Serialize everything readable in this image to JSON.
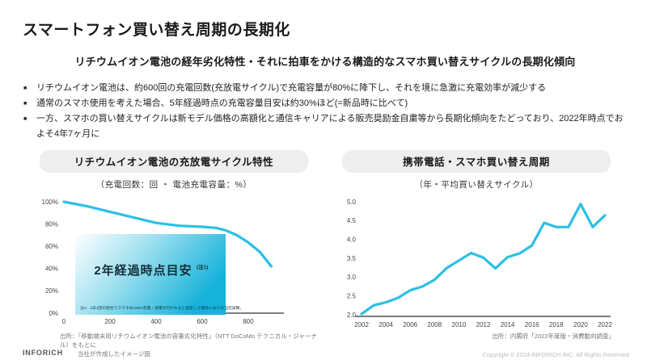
{
  "slide": {
    "title": "スマートフォン買い替え周期の長期化",
    "subtitle": "リチウムイオン電池の経年劣化特性・それに拍車をかける構造的なスマホ買い替えサイクルの長期化傾向",
    "bullets": [
      "リチウムイオン電池は、約600回の充電回数(充放電サイクル)で充電容量が80%に降下し、それを境に急激に充電効率が減少する",
      "通常のスマホ使用を考えた場合、5年経過時点の充電容量目安は約30%ほど(=新品時に比べて)",
      "一方、スマホの買い替えサイクルは新モデル価格の高額化と通信キャリアによる販売奨励金自粛等から長期化傾向をたどっており、2022年時点でおよそ4年7ヶ月に"
    ],
    "footer": {
      "logo": "INFORICH",
      "copyright": "Copyright © 2024 INFORICH INC. All Rights Reserved."
    }
  },
  "left_panel": {
    "pill_title": "リチウムイオン電池の充放電サイクル特性",
    "axis_caption": "（充電回数：回 ・ 電池充電容量：%）",
    "overlay": {
      "label": "2年経過時点目安",
      "superscript": "(注1)",
      "note": "注1：1日1回の割合でスマホの100%充電・放電が行われると仮定した場合における当社試算。"
    },
    "source_line1": "出所：「移動端末用リチウムイオン電池の容量劣化特性」（NTT DoCoMo テクニカル・ジャーナル）をもとに",
    "source_line2": "当社が作成したイメージ図"
  },
  "right_panel": {
    "pill_title": "携帯電話・スマホ買い替え周期",
    "axis_caption": "（年・平均買い替えサイクル）",
    "source": "出所：内閣府「2022年度版・消費動向調査」"
  },
  "colors": {
    "accent_line": "#2bc0e4",
    "pill_background": "#eeeeee",
    "overlay_gradient_start": "#ffffff",
    "overlay_gradient_end": "#17b3da",
    "axis_line": "#545454"
  },
  "chart_data": [
    {
      "type": "line",
      "title": "リチウムイオン電池の充放電サイクル特性",
      "xlabel": "充電回数（回）",
      "ylabel": "電池充電容量（%）",
      "x": [
        0,
        100,
        200,
        300,
        400,
        500,
        600,
        660,
        700,
        750,
        800,
        850,
        900
      ],
      "values": [
        100,
        96,
        91,
        86,
        81,
        78.5,
        77.5,
        76.5,
        74.5,
        70,
        63.5,
        55,
        42
      ],
      "xlim": [
        0,
        1000
      ],
      "ylim": [
        0,
        100
      ],
      "x_ticks": [
        0,
        200,
        400,
        600,
        800
      ],
      "x_tick_labels": [
        "0",
        "200",
        "400",
        "600",
        "800"
      ],
      "y_ticks": [
        0,
        20,
        40,
        60,
        80,
        100
      ],
      "y_tick_labels": [
        "0%",
        "20%",
        "40%",
        "60%",
        "80%",
        "100%"
      ],
      "grid": false,
      "legend": false,
      "annotation": "2年経過時点目安（注1）"
    },
    {
      "type": "line",
      "title": "携帯電話・スマホ買い替え周期",
      "xlabel": "年",
      "ylabel": "平均買い替えサイクル（年）",
      "x": [
        2002,
        2003,
        2004,
        2005,
        2006,
        2007,
        2008,
        2009,
        2010,
        2011,
        2012,
        2013,
        2014,
        2015,
        2016,
        2017,
        2018,
        2019,
        2020,
        2021,
        2022
      ],
      "values": [
        2.02,
        2.25,
        2.33,
        2.45,
        2.65,
        2.75,
        2.93,
        3.24,
        3.44,
        3.64,
        3.52,
        3.23,
        3.53,
        3.63,
        3.84,
        4.44,
        4.33,
        4.33,
        4.94,
        4.33,
        4.64
      ],
      "xlim": [
        2002,
        2022
      ],
      "ylim": [
        2.0,
        5.0
      ],
      "x_ticks": [
        2002,
        2004,
        2006,
        2008,
        2010,
        2012,
        2014,
        2016,
        2018,
        2020,
        2022
      ],
      "x_tick_labels": [
        "2002",
        "2004",
        "2006",
        "2008",
        "2010",
        "2012",
        "2014",
        "2016",
        "2018",
        "2020",
        "2022"
      ],
      "y_ticks": [
        2.0,
        2.5,
        3.0,
        3.5,
        4.0,
        4.5,
        5.0
      ],
      "y_tick_labels": [
        "2.0",
        "2.5",
        "3.0",
        "3.5",
        "4.0",
        "4.5",
        "5.0"
      ],
      "grid": false,
      "legend": false
    }
  ]
}
